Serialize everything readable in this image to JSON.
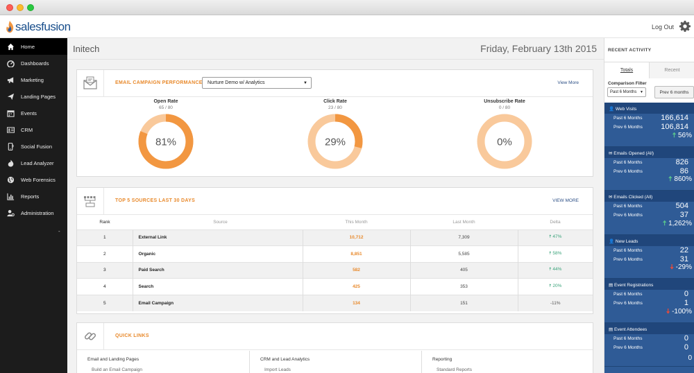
{
  "header": {
    "logo_text": "salesfusion",
    "logout_label": "Log Out"
  },
  "sidebar": {
    "items": [
      {
        "label": "Home",
        "icon": "home-icon"
      },
      {
        "label": "Dashboards",
        "icon": "dashboard-icon"
      },
      {
        "label": "Marketing",
        "icon": "megaphone-icon"
      },
      {
        "label": "Landing Pages",
        "icon": "send-icon"
      },
      {
        "label": "Events",
        "icon": "calendar-icon"
      },
      {
        "label": "CRM",
        "icon": "id-card-icon"
      },
      {
        "label": "Social Fusion",
        "icon": "mobile-icon"
      },
      {
        "label": "Lead Analyzer",
        "icon": "fire-icon"
      },
      {
        "label": "Web Forensics",
        "icon": "globe-icon"
      },
      {
        "label": "Reports",
        "icon": "bar-chart-icon"
      },
      {
        "label": "Administration",
        "icon": "admin-icon"
      }
    ],
    "collapse_mark": "-"
  },
  "main": {
    "company": "Initech",
    "date": "Friday, February 13th 2015"
  },
  "email_panel": {
    "title": "EMAIL CAMPAIGN PERFORMANCE",
    "select_value": "Nurture Demo w/ Analytics",
    "view_more": "View More",
    "gauges": [
      {
        "title": "Open Rate",
        "sub": "65 / 80",
        "pct_label": "81%",
        "pct": 0.81
      },
      {
        "title": "Click Rate",
        "sub": "23 / 80",
        "pct_label": "29%",
        "pct": 0.29
      },
      {
        "title": "Unsubscribe Rate",
        "sub": "0 / 80",
        "pct_label": "0%",
        "pct": 0.0
      }
    ]
  },
  "sources_panel": {
    "title": "TOP 5 SOURCES LAST 30 DAYS",
    "view_more": "VIEW MORE",
    "headers": {
      "rank": "Rank",
      "source": "Source",
      "this_month": "This Month",
      "last_month": "Last Month",
      "delta": "Delta"
    },
    "rows": [
      {
        "rank": "1",
        "source": "External Link",
        "this_month": "10,712",
        "last_month": "7,309",
        "delta": "47%",
        "dir": "up"
      },
      {
        "rank": "2",
        "source": "Organic",
        "this_month": "8,851",
        "last_month": "5,585",
        "delta": "58%",
        "dir": "up"
      },
      {
        "rank": "3",
        "source": "Paid Search",
        "this_month": "582",
        "last_month": "405",
        "delta": "44%",
        "dir": "up"
      },
      {
        "rank": "4",
        "source": "Search",
        "this_month": "425",
        "last_month": "353",
        "delta": "20%",
        "dir": "up"
      },
      {
        "rank": "5",
        "source": "Email Campaign",
        "this_month": "134",
        "last_month": "151",
        "delta": "-11%",
        "dir": "none"
      }
    ]
  },
  "quicklinks_panel": {
    "title": "QUICK LINKS",
    "columns": [
      {
        "heading": "Email and Landing Pages",
        "sub": "Build an Email Campaign"
      },
      {
        "heading": "CRM and Lead Analytics",
        "sub": "Import Leads"
      },
      {
        "heading": "Reporting",
        "sub": "Standard Reports"
      }
    ]
  },
  "right_panel": {
    "title": "RECENT ACTIVITY",
    "tab_totals": "Totals",
    "tab_recent": "Recent",
    "comparison_label": "Comparison Filter",
    "comparison_value": "Past 6 Months",
    "compare_button": "Prev 6 months",
    "stats": [
      {
        "title": "Web Visits",
        "icon": "user-icon",
        "past_label": "Past 6 Months",
        "past": "166,614",
        "prev_label": "Prev 6 Months",
        "prev": "106,814",
        "delta": "56%",
        "dir": "up"
      },
      {
        "title": "Emails Opened (All)",
        "icon": "envelope-icon",
        "past_label": "Past 6 Months",
        "past": "826",
        "prev_label": "Prev 6 Months",
        "prev": "86",
        "delta": "860%",
        "dir": "up"
      },
      {
        "title": "Emails Clicked (All)",
        "icon": "envelope-icon",
        "past_label": "Past 6 Months",
        "past": "504",
        "prev_label": "Prev 6 Months",
        "prev": "37",
        "delta": "1,262%",
        "dir": "up"
      },
      {
        "title": "New Leads",
        "icon": "user-icon",
        "past_label": "Past 6 Months",
        "past": "22",
        "prev_label": "Prev 6 Months",
        "prev": "31",
        "delta": "-29%",
        "dir": "down"
      },
      {
        "title": "Event Registrations",
        "icon": "document-icon",
        "past_label": "Past 6 Months",
        "past": "0",
        "prev_label": "Prev 6 Months",
        "prev": "1",
        "delta": "-100%",
        "dir": "down"
      },
      {
        "title": "Event Attendees",
        "icon": "document-icon",
        "past_label": "Past 6 Months",
        "past": "0",
        "prev_label": "Prev 6 Months",
        "prev": "0",
        "delta": "0",
        "dir": "none"
      }
    ]
  },
  "colors": {
    "accent_orange": "#f29741",
    "light_orange": "#f9c99b",
    "brand_blue": "#2f5b96",
    "positive_green": "#57c08d",
    "negative_red": "#e84b3a"
  }
}
